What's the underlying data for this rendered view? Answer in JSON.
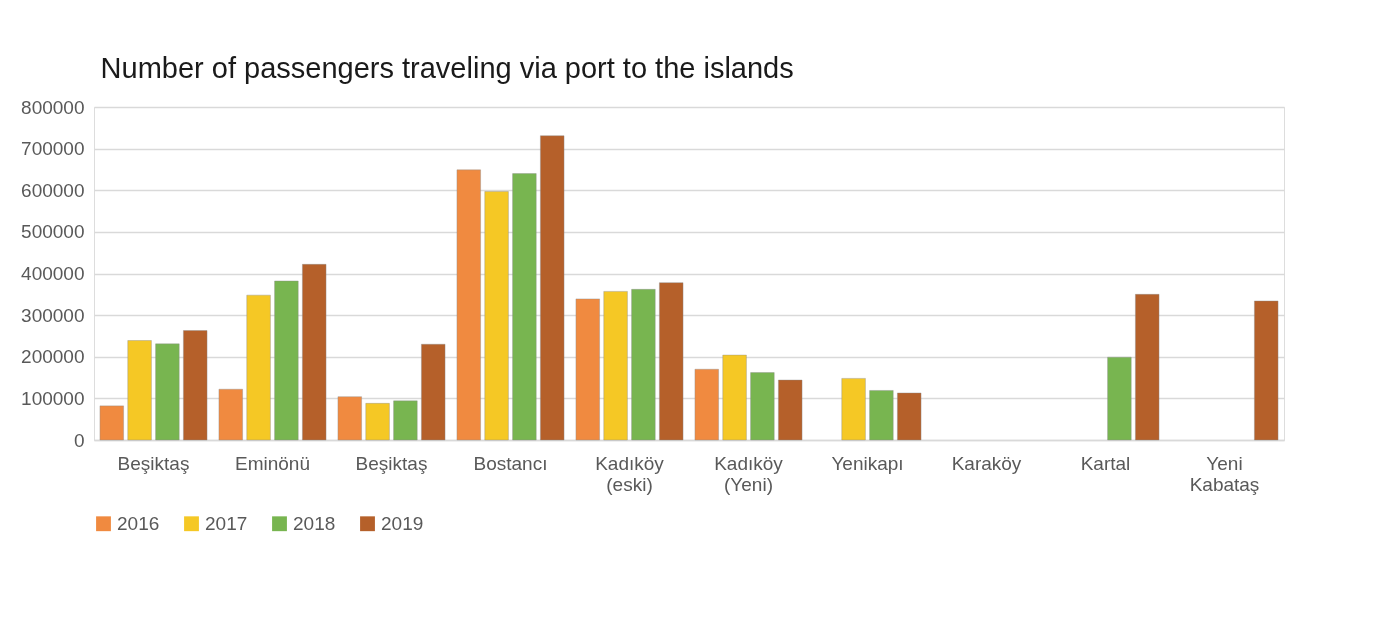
{
  "chart_data": {
    "type": "bar",
    "title": "Number of passengers traveling via port to the islands",
    "categories": [
      "Beşiktaş",
      "Eminönü",
      "Beşiktaş",
      "Bostancı",
      "Kadıköy (eski)",
      "Kadıköy (Yeni)",
      "Yenikapı",
      "Karaköy",
      "Kartal",
      "Yeni Kabataş"
    ],
    "series": [
      {
        "name": "2016",
        "color": "#f08a40",
        "values": [
          82000,
          122000,
          104000,
          649000,
          339000,
          170000,
          null,
          null,
          null,
          null
        ]
      },
      {
        "name": "2017",
        "color": "#f5c825",
        "values": [
          239000,
          348000,
          88000,
          597000,
          357000,
          204000,
          148000,
          null,
          null,
          null
        ]
      },
      {
        "name": "2018",
        "color": "#78b550",
        "values": [
          231000,
          382000,
          94000,
          640000,
          362000,
          162000,
          119000,
          null,
          199000,
          null
        ]
      },
      {
        "name": "2019",
        "color": "#b5602a",
        "values": [
          263000,
          422000,
          230000,
          731000,
          378000,
          144000,
          113000,
          null,
          350000,
          334000
        ]
      }
    ],
    "ylim": [
      0,
      800000
    ],
    "yticks": [
      0,
      100000,
      200000,
      300000,
      400000,
      500000,
      600000,
      700000,
      800000
    ],
    "grid": "y",
    "legend": "bottom"
  }
}
